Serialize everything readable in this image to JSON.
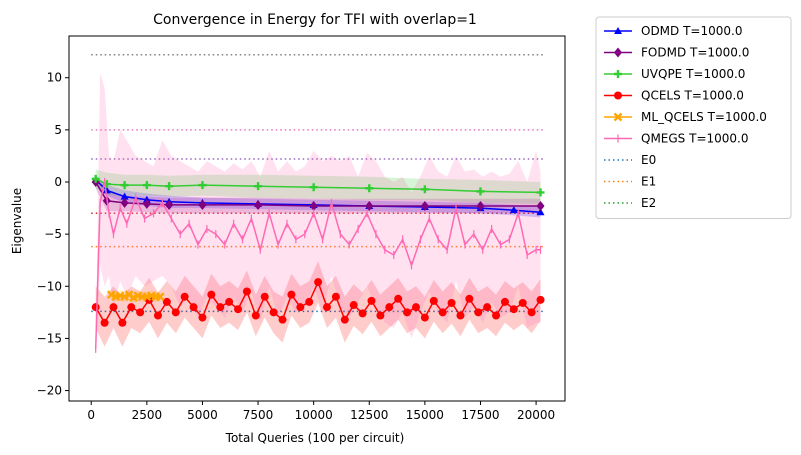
{
  "chart_data": {
    "type": "line",
    "title": "Convergence in Energy for TFI with overlap=1",
    "xlabel": "Total Queries (100 per circuit)",
    "ylabel": "Eigenvalue",
    "xlim": [
      -1000,
      21300
    ],
    "ylim": [
      -21,
      14
    ],
    "xticks": [
      0,
      2500,
      5000,
      7500,
      10000,
      12500,
      15000,
      17500,
      20000
    ],
    "xtick_labels": [
      "0",
      "2500",
      "5000",
      "7500",
      "10000",
      "12500",
      "15000",
      "17500",
      "20000"
    ],
    "yticks": [
      -20,
      -15,
      -10,
      -5,
      0,
      5,
      10
    ],
    "ytick_labels": [
      "−20",
      "−15",
      "−10",
      "−5",
      "0",
      "5",
      "10"
    ],
    "grid": false,
    "legend_position": "outside-right",
    "reference_lines": [
      {
        "y": 12.2,
        "color": "#7f7f7f"
      },
      {
        "y": 5.0,
        "color": "#e377c2"
      },
      {
        "y": 2.2,
        "color": "#9467bd"
      },
      {
        "y": -3.0,
        "color": "#d62728"
      },
      {
        "y": -6.2,
        "color": "#ff7f0e"
      },
      {
        "y": -12.4,
        "color": "#1f77b4"
      }
    ],
    "series": [
      {
        "name": "ODMD T=1000.0",
        "color": "#0000ff",
        "marker": "triangle",
        "x": [
          200,
          700,
          1500,
          2500,
          3500,
          5000,
          7500,
          10000,
          12500,
          15000,
          17500,
          19000,
          20200
        ],
        "y": [
          0.2,
          -0.8,
          -1.4,
          -1.7,
          -1.9,
          -2.0,
          -2.1,
          -2.2,
          -2.3,
          -2.4,
          -2.5,
          -2.7,
          -2.9
        ],
        "band_upper": [
          0.6,
          -0.3,
          -0.8,
          -1.1,
          -1.3,
          -1.5,
          -1.6,
          -1.7,
          -1.8,
          -1.9,
          -2.0,
          -2.2,
          -2.4
        ],
        "band_lower": [
          -0.2,
          -1.3,
          -2.0,
          -2.3,
          -2.5,
          -2.5,
          -2.6,
          -2.7,
          -2.8,
          -2.9,
          -3.0,
          -3.2,
          -3.4
        ]
      },
      {
        "name": "FODMD T=1000.0",
        "color": "#800080",
        "marker": "diamond",
        "x": [
          200,
          700,
          1500,
          2500,
          3500,
          5000,
          7500,
          10000,
          12500,
          15000,
          17500,
          20200
        ],
        "y": [
          0.0,
          -1.8,
          -2.0,
          -2.1,
          -2.2,
          -2.2,
          -2.2,
          -2.3,
          -2.3,
          -2.3,
          -2.3,
          -2.3
        ],
        "band_upper": [
          0.6,
          -0.8,
          -1.3,
          -1.4,
          -1.5,
          -1.5,
          -1.5,
          -1.6,
          -1.6,
          -1.6,
          -1.6,
          -1.6
        ],
        "band_lower": [
          -0.6,
          -2.8,
          -2.8,
          -2.9,
          -3.0,
          -3.0,
          -3.0,
          -3.0,
          -3.0,
          -3.0,
          -3.0,
          -3.0
        ]
      },
      {
        "name": "UVQPE T=1000.0",
        "color": "#32cd32",
        "marker": "plus",
        "x": [
          200,
          700,
          1500,
          2500,
          3500,
          5000,
          7500,
          10000,
          12500,
          15000,
          17500,
          20200
        ],
        "y": [
          0.3,
          -0.2,
          -0.3,
          -0.3,
          -0.4,
          -0.3,
          -0.4,
          -0.5,
          -0.6,
          -0.7,
          -0.9,
          -1.0
        ],
        "band_upper": [
          1.2,
          0.9,
          0.7,
          0.7,
          0.6,
          0.7,
          0.7,
          0.6,
          0.5,
          0.3,
          0.2,
          0.0
        ],
        "band_lower": [
          -0.6,
          -1.3,
          -1.3,
          -1.3,
          -1.4,
          -1.3,
          -1.5,
          -1.6,
          -1.7,
          -1.7,
          -2.0,
          -2.1
        ]
      },
      {
        "name": "QCELS T=1000.0",
        "color": "#ff0000",
        "marker": "circle",
        "x": [
          200,
          600,
          1000,
          1400,
          1800,
          2200,
          2600,
          3000,
          3400,
          3800,
          4200,
          4600,
          5000,
          5400,
          5800,
          6200,
          6600,
          7000,
          7400,
          7800,
          8200,
          8600,
          9000,
          9400,
          9800,
          10200,
          10600,
          11000,
          11400,
          11800,
          12200,
          12600,
          13000,
          13400,
          13800,
          14200,
          14600,
          15000,
          15400,
          15800,
          16200,
          16600,
          17000,
          17400,
          17800,
          18200,
          18600,
          19000,
          19400,
          19800,
          20200
        ],
        "y": [
          -12.0,
          -13.5,
          -12.0,
          -13.5,
          -12.0,
          -12.5,
          -11.3,
          -12.8,
          -11.5,
          -12.5,
          -11.0,
          -12.0,
          -13.0,
          -10.8,
          -12.0,
          -11.5,
          -12.2,
          -10.5,
          -12.8,
          -11.0,
          -12.5,
          -13.2,
          -10.8,
          -12.0,
          -11.5,
          -9.6,
          -12.0,
          -11.0,
          -13.2,
          -11.8,
          -12.6,
          -11.4,
          -12.8,
          -12.0,
          -11.2,
          -12.5,
          -12.0,
          -13.0,
          -11.4,
          -12.5,
          -11.6,
          -12.8,
          -11.2,
          -12.5,
          -12.0,
          -12.8,
          -11.5,
          -12.2,
          -11.6,
          -12.5,
          -11.3
        ],
        "band_upper": [
          -10.0,
          -11.0,
          -10.0,
          -11.0,
          -10.0,
          -10.5,
          -9.2,
          -10.6,
          -9.5,
          -10.5,
          -9.0,
          -10.0,
          -11.0,
          -8.8,
          -10.0,
          -9.5,
          -10.2,
          -8.5,
          -10.8,
          -9.0,
          -10.5,
          -11.0,
          -8.8,
          -10.0,
          -9.5,
          -7.6,
          -10.0,
          -9.0,
          -11.0,
          -9.8,
          -10.6,
          -9.4,
          -10.8,
          -10.0,
          -9.2,
          -10.5,
          -10.0,
          -11.0,
          -9.4,
          -10.5,
          -9.6,
          -10.8,
          -9.2,
          -10.5,
          -10.0,
          -10.8,
          -9.5,
          -10.2,
          -9.6,
          -10.5,
          -9.3
        ],
        "band_lower": [
          -14.0,
          -15.8,
          -14.0,
          -15.8,
          -14.0,
          -14.5,
          -13.4,
          -15.0,
          -13.5,
          -14.5,
          -13.0,
          -14.0,
          -15.0,
          -12.8,
          -14.0,
          -13.5,
          -14.2,
          -12.5,
          -14.8,
          -13.0,
          -14.5,
          -15.4,
          -12.8,
          -14.0,
          -13.5,
          -11.6,
          -14.0,
          -13.0,
          -15.4,
          -13.8,
          -14.6,
          -13.4,
          -14.8,
          -14.0,
          -13.2,
          -14.5,
          -14.0,
          -15.0,
          -13.4,
          -14.5,
          -13.6,
          -14.8,
          -13.2,
          -14.5,
          -14.0,
          -14.8,
          -13.5,
          -14.2,
          -13.6,
          -14.5,
          -13.3
        ]
      },
      {
        "name": "ML_QCELS T=1000.0",
        "color": "#ffa500",
        "marker": "x",
        "x": [
          900,
          1100,
          1300,
          1500,
          1700,
          1900,
          2100,
          2300,
          2500,
          2700,
          2900,
          3100
        ],
        "y": [
          -10.8,
          -11.0,
          -10.9,
          -11.0,
          -10.8,
          -11.1,
          -10.9,
          -11.0,
          -11.0,
          -10.9,
          -11.0,
          -11.0
        ],
        "band_upper": [
          -10.3,
          -10.5,
          -10.4,
          -10.5,
          -10.3,
          -10.6,
          -10.4,
          -10.5,
          -10.5,
          -10.4,
          -10.5,
          -10.5
        ],
        "band_lower": [
          -11.3,
          -11.5,
          -11.4,
          -11.5,
          -11.3,
          -11.6,
          -11.4,
          -11.5,
          -11.5,
          -11.4,
          -11.5,
          -11.5
        ]
      },
      {
        "name": "QMEGS T=1000.0",
        "color": "#ff69b4",
        "marker": "vline",
        "x": [
          200,
          400,
          600,
          800,
          1000,
          1300,
          1600,
          2000,
          2400,
          2800,
          3200,
          3600,
          4000,
          4400,
          4800,
          5200,
          5600,
          6000,
          6400,
          6800,
          7200,
          7600,
          8000,
          8400,
          8800,
          9200,
          9600,
          10000,
          10400,
          10800,
          11200,
          11600,
          12000,
          12400,
          12800,
          13200,
          13600,
          14000,
          14400,
          14800,
          15200,
          15600,
          16000,
          16400,
          16800,
          17200,
          17600,
          18000,
          18400,
          18800,
          19200,
          19600,
          20000,
          20200
        ],
        "y": [
          -16.0,
          -2.0,
          0.0,
          -3.0,
          -5.0,
          -2.5,
          -4.0,
          -1.5,
          -3.5,
          -3.0,
          -2.0,
          -3.5,
          -5.0,
          -4.0,
          -6.0,
          -4.5,
          -5.0,
          -6.0,
          -4.0,
          -5.5,
          -3.5,
          -6.5,
          -3.0,
          -6.0,
          -4.0,
          -5.5,
          -5.0,
          -3.0,
          -5.5,
          -2.0,
          -5.0,
          -6.0,
          -4.5,
          -3.0,
          -5.0,
          -6.5,
          -7.0,
          -5.5,
          -8.0,
          -5.5,
          -3.5,
          -5.5,
          -6.5,
          -2.5,
          -6.0,
          -5.0,
          -6.5,
          -4.5,
          -6.0,
          -5.5,
          -3.0,
          -7.0,
          -6.5,
          -6.5
        ],
        "band_upper": [
          -15.5,
          10.5,
          9.0,
          2.5,
          2.0,
          5.0,
          4.0,
          2.5,
          2.0,
          1.5,
          4.0,
          2.5,
          2.0,
          1.5,
          1.0,
          2.0,
          1.5,
          1.0,
          1.8,
          1.2,
          2.0,
          0.5,
          3.0,
          1.0,
          2.0,
          1.0,
          1.5,
          3.0,
          2.0,
          2.5,
          2.0,
          2.5,
          0.5,
          2.8,
          2.0,
          0.5,
          0.0,
          0.5,
          -1.0,
          0.5,
          2.5,
          1.0,
          0.5,
          2.5,
          1.0,
          1.2,
          0.5,
          1.0,
          0.5,
          0.8,
          2.0,
          0.0,
          3.0,
          1.0
        ],
        "band_lower": [
          -17.0,
          -8.0,
          -10.0,
          -9.0,
          -12.0,
          -9.5,
          -11.0,
          -9.0,
          -10.0,
          -9.5,
          -9.0,
          -10.0,
          -12.0,
          -11.0,
          -13.0,
          -11.0,
          -12.0,
          -13.0,
          -11.0,
          -12.5,
          -10.5,
          -13.5,
          -10.0,
          -13.0,
          -11.0,
          -12.5,
          -12.0,
          -10.0,
          -12.5,
          -9.0,
          -12.0,
          -13.0,
          -11.5,
          -10.0,
          -12.0,
          -13.5,
          -14.0,
          -12.5,
          -15.0,
          -12.5,
          -10.5,
          -12.5,
          -13.5,
          -9.5,
          -13.0,
          -12.0,
          -13.5,
          -11.5,
          -13.0,
          -12.5,
          -10.0,
          -14.0,
          -13.5,
          -13.5
        ]
      }
    ],
    "legend_extra": [
      {
        "name": "E0",
        "color": "#1f77b4",
        "style": "dotted"
      },
      {
        "name": "E1",
        "color": "#ff7f0e",
        "style": "dotted"
      },
      {
        "name": "E2",
        "color": "#2ca02c",
        "style": "dotted"
      }
    ]
  }
}
